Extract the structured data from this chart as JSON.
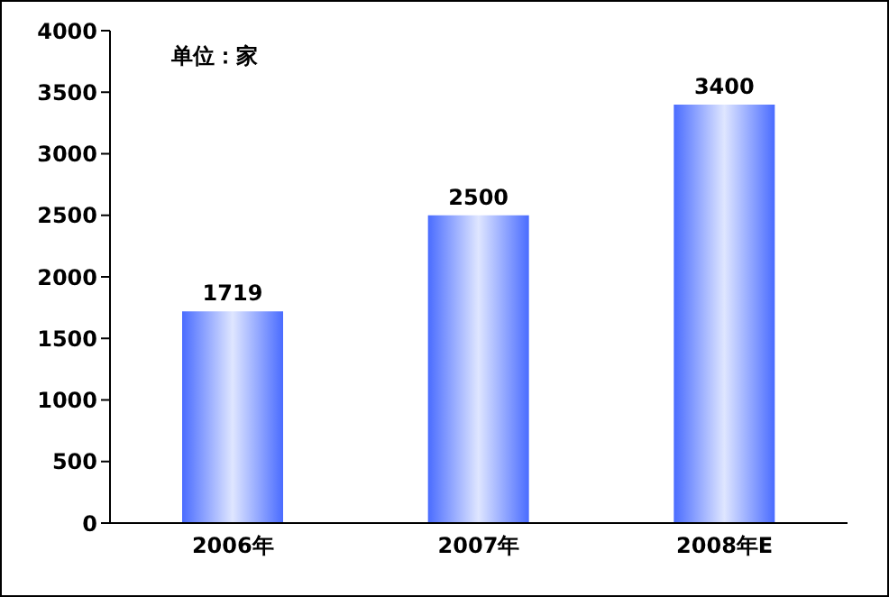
{
  "chart_data": {
    "type": "bar",
    "categories": [
      "2006年",
      "2007年",
      "2008年E"
    ],
    "values": [
      1719,
      2500,
      3400
    ],
    "color": "#4a6cff",
    "ylim": [
      0,
      4000
    ],
    "yticks": [
      0,
      500,
      1000,
      1500,
      2000,
      2500,
      3000,
      3500,
      4000
    ],
    "grid": false,
    "data_labels": true,
    "annotations": [
      "单位：家"
    ]
  }
}
